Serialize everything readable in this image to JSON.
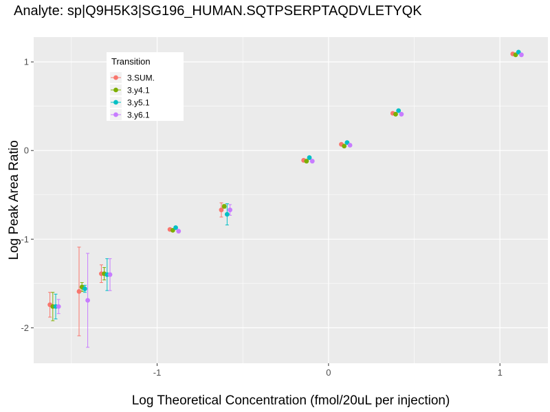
{
  "chart_data": {
    "type": "scatter",
    "title": "Analyte: sp|Q9H5K3|SG196_HUMAN.SQTPSERPTAQDVLETYQK",
    "xlabel": "Log Theoretical Concentration (fmol/20uL per injection)",
    "ylabel": "Log Peak Area Ratio",
    "xlim": [
      -1.72,
      1.28
    ],
    "ylim": [
      -2.4,
      1.28
    ],
    "x_ticks": [
      -1,
      0,
      1
    ],
    "x_tick_labels": [
      "-1",
      "0",
      "1"
    ],
    "y_ticks": [
      -2,
      -1,
      0,
      1
    ],
    "y_tick_labels": [
      "-2",
      "-1",
      "0",
      "1"
    ],
    "grid": true,
    "legend": {
      "title": "Transition",
      "placement": "top-left"
    },
    "x": [
      -1.6,
      -1.43,
      -1.3,
      -0.9,
      -0.6,
      -0.12,
      0.1,
      0.4,
      1.1
    ],
    "series": [
      {
        "name": "3.SUM.",
        "color": "#F8766D",
        "values": [
          -1.74,
          -1.59,
          -1.39,
          -0.89,
          -0.67,
          -0.11,
          0.07,
          0.42,
          1.09
        ],
        "errors": [
          0.14,
          0.5,
          0.1,
          0.0,
          0.08,
          0.0,
          0.0,
          0.0,
          0.0
        ]
      },
      {
        "name": "3.y4.1",
        "color": "#7CAE00",
        "values": [
          -1.76,
          -1.54,
          -1.39,
          -0.9,
          -0.63,
          -0.12,
          0.05,
          0.41,
          1.08
        ],
        "errors": [
          0.16,
          0.05,
          0.07,
          0.0,
          0.02,
          0.0,
          0.0,
          0.0,
          0.0
        ]
      },
      {
        "name": "3.y5.1",
        "color": "#00BFC4",
        "values": [
          -1.76,
          -1.56,
          -1.4,
          -0.87,
          -0.72,
          -0.08,
          0.09,
          0.45,
          1.11
        ],
        "errors": [
          0.14,
          0.04,
          0.18,
          0.0,
          0.12,
          0.0,
          0.0,
          0.0,
          0.0
        ]
      },
      {
        "name": "3.y6.1",
        "color": "#C77CFF",
        "values": [
          -1.76,
          -1.69,
          -1.4,
          -0.91,
          -0.67,
          -0.12,
          0.06,
          0.41,
          1.08
        ],
        "errors": [
          0.08,
          0.53,
          0.18,
          0.0,
          0.06,
          0.0,
          0.0,
          0.0,
          0.0
        ]
      }
    ]
  }
}
